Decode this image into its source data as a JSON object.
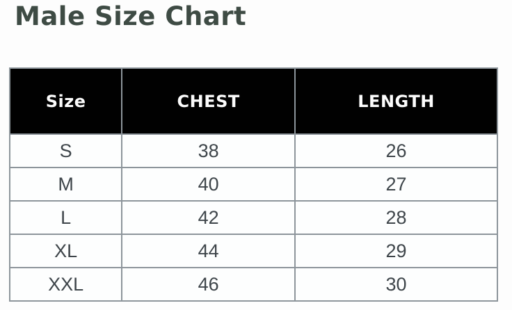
{
  "page": {
    "title": "Male Size Chart"
  },
  "colors": {
    "title_text": "#3e4b44",
    "header_bg": "#010101",
    "header_text": "#fcfcfc",
    "body_bg": "#fdfefe",
    "body_text": "#3e454a",
    "border": "#8d959b",
    "page_bg": "#fdfdfd"
  },
  "chart_data": {
    "type": "table",
    "title": "Male Size Chart",
    "columns": [
      "Size",
      "CHEST",
      "LENGTH"
    ],
    "rows": [
      [
        "S",
        "38",
        "26"
      ],
      [
        "M",
        "40",
        "27"
      ],
      [
        "L",
        "42",
        "28"
      ],
      [
        "XL",
        "44",
        "29"
      ],
      [
        "XXL",
        "46",
        "30"
      ]
    ],
    "layout_hints": {
      "header_style": "black band, white bold text",
      "grid": "on",
      "alignment": "center"
    }
  }
}
